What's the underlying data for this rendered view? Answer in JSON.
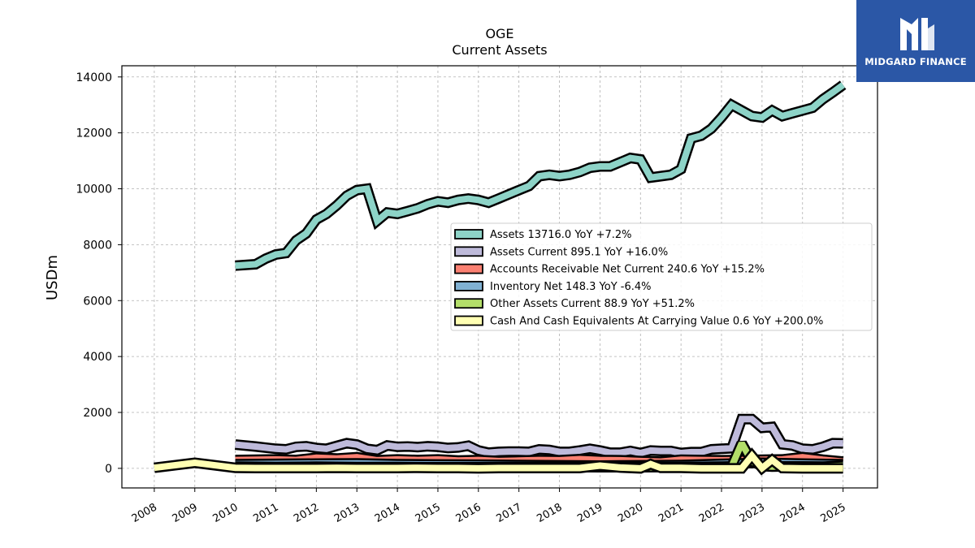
{
  "brand": {
    "name": "MIDGARD FINANCE",
    "bg_color": "#2b57a6"
  },
  "chart_data": {
    "type": "area",
    "title": "OGE",
    "subtitle": "Current  Assets",
    "xlabel": "",
    "ylabel": "USDm",
    "ylim": [
      -700,
      14400
    ],
    "xlim": [
      2007.2,
      2025.85
    ],
    "yticks": [
      0,
      2000,
      4000,
      6000,
      8000,
      10000,
      12000,
      14000
    ],
    "xticks": [
      "2008",
      "2009",
      "2010",
      "2011",
      "2012",
      "2013",
      "2014",
      "2015",
      "2016",
      "2017",
      "2018",
      "2019",
      "2020",
      "2021",
      "2022",
      "2023",
      "2024",
      "2025"
    ],
    "grid": true,
    "legend_position": "center-right",
    "series": [
      {
        "name": "Assets",
        "legend": "Assets  13716.0 YoY +7.2%",
        "color": "#8dd3c7",
        "x": [
          2010.0,
          2010.5,
          2010.75,
          2011.0,
          2011.25,
          2011.5,
          2011.75,
          2012.0,
          2012.25,
          2012.5,
          2012.75,
          2013.0,
          2013.25,
          2013.5,
          2013.75,
          2014.0,
          2014.25,
          2014.5,
          2014.75,
          2015.0,
          2015.25,
          2015.5,
          2015.75,
          2016.0,
          2016.25,
          2016.5,
          2016.75,
          2017.0,
          2017.25,
          2017.5,
          2017.75,
          2018.0,
          2018.25,
          2018.5,
          2018.75,
          2019.0,
          2019.25,
          2019.5,
          2019.75,
          2020.0,
          2020.25,
          2020.5,
          2020.75,
          2021.0,
          2021.25,
          2021.5,
          2021.75,
          2022.0,
          2022.25,
          2022.5,
          2022.75,
          2023.0,
          2023.25,
          2023.5,
          2023.75,
          2024.0,
          2024.25,
          2024.5,
          2024.75,
          2025.0
        ],
        "values": [
          7250,
          7300,
          7500,
          7650,
          7700,
          8150,
          8400,
          8900,
          9100,
          9400,
          9750,
          9950,
          10000,
          8850,
          9150,
          9100,
          9200,
          9300,
          9450,
          9550,
          9500,
          9600,
          9650,
          9600,
          9500,
          9650,
          9800,
          9950,
          10100,
          10450,
          10500,
          10450,
          10500,
          10600,
          10750,
          10800,
          10800,
          10950,
          11100,
          11050,
          10400,
          10450,
          10500,
          10700,
          11800,
          11900,
          12150,
          12550,
          13000,
          12800,
          12600,
          12550,
          12800,
          12600,
          12700,
          12800,
          12900,
          13200,
          13450,
          13716
        ]
      },
      {
        "name": "Assets Current",
        "legend": "Assets Current  895.1 YoY +16.0%",
        "color": "#bebada",
        "x": [
          2010.0,
          2010.5,
          2010.75,
          2011.0,
          2011.25,
          2011.5,
          2011.75,
          2012.0,
          2012.25,
          2012.5,
          2012.75,
          2013.0,
          2013.25,
          2013.5,
          2013.75,
          2014.0,
          2014.25,
          2014.5,
          2014.75,
          2015.0,
          2015.25,
          2015.5,
          2015.75,
          2016.0,
          2016.25,
          2016.5,
          2016.75,
          2017.0,
          2017.25,
          2017.5,
          2017.75,
          2018.0,
          2018.25,
          2018.5,
          2018.75,
          2019.0,
          2019.25,
          2019.5,
          2019.75,
          2020.0,
          2020.25,
          2020.5,
          2020.75,
          2021.0,
          2021.25,
          2021.5,
          2021.75,
          2022.0,
          2022.25,
          2022.5,
          2022.75,
          2023.0,
          2023.25,
          2023.5,
          2023.75,
          2024.0,
          2024.25,
          2024.5,
          2024.75,
          2025.0
        ],
        "values": [
          850,
          780,
          740,
          700,
          680,
          770,
          790,
          730,
          700,
          800,
          900,
          850,
          700,
          650,
          820,
          770,
          780,
          760,
          790,
          770,
          730,
          750,
          810,
          640,
          560,
          590,
          600,
          600,
          590,
          680,
          660,
          590,
          590,
          640,
          700,
          640,
          560,
          560,
          620,
          550,
          640,
          620,
          620,
          550,
          580,
          580,
          680,
          700,
          720,
          1760,
          1760,
          1450,
          1480,
          860,
          820,
          700,
          680,
          770,
          900,
          895
        ]
      },
      {
        "name": "Accounts Receivable Net Current",
        "legend": "Accounts Receivable Net Current  240.6 YoY +15.2%",
        "color": "#fb8072",
        "x": [
          2010.0,
          2010.5,
          2011.0,
          2011.5,
          2012.0,
          2012.5,
          2013.0,
          2013.5,
          2014.0,
          2014.5,
          2015.0,
          2015.5,
          2016.0,
          2016.5,
          2017.0,
          2017.5,
          2018.0,
          2018.5,
          2019.0,
          2019.5,
          2020.0,
          2020.5,
          2021.0,
          2021.5,
          2022.0,
          2022.5,
          2023.0,
          2023.5,
          2024.0,
          2024.5,
          2025.0
        ],
        "values": [
          300,
          310,
          320,
          300,
          380,
          350,
          400,
          290,
          320,
          300,
          320,
          280,
          300,
          260,
          280,
          300,
          290,
          330,
          300,
          290,
          260,
          240,
          310,
          300,
          290,
          300,
          310,
          320,
          400,
          310,
          240.6
        ]
      },
      {
        "name": "Inventory Net",
        "legend": "Inventory Net  148.3 YoY -6.4%",
        "color": "#80b1d3",
        "x": [
          2010.0,
          2011.0,
          2012.0,
          2013.0,
          2014.0,
          2015.0,
          2016.0,
          2017.0,
          2018.0,
          2019.0,
          2020.0,
          2021.0,
          2022.0,
          2023.0,
          2024.0,
          2025.0
        ],
        "values": [
          150,
          160,
          170,
          180,
          150,
          140,
          130,
          120,
          110,
          100,
          110,
          120,
          160,
          200,
          170,
          148.3
        ]
      },
      {
        "name": "Other Assets Current",
        "legend": "Other Assets Current  88.9 YoY +51.2%",
        "color": "#b3de69",
        "x": [
          2010.0,
          2011.0,
          2012.0,
          2013.0,
          2014.0,
          2015.0,
          2016.0,
          2017.0,
          2018.0,
          2019.0,
          2020.0,
          2021.0,
          2022.0,
          2022.25,
          2022.5,
          2022.75,
          2023.0,
          2023.25,
          2023.5,
          2024.0,
          2024.5,
          2025.0
        ],
        "values": [
          60,
          50,
          60,
          50,
          50,
          40,
          40,
          50,
          50,
          40,
          40,
          50,
          60,
          70,
          900,
          250,
          80,
          60,
          70,
          70,
          60,
          88.9
        ]
      },
      {
        "name": "Cash And Cash Equivalents At Carrying Value",
        "legend": "Cash And Cash Equivalents At Carrying Value  0.6 YoY +200.0%",
        "color": "#ffffb3",
        "x": [
          2008.0,
          2009.0,
          2010.0,
          2010.5,
          2011.0,
          2011.5,
          2012.0,
          2012.5,
          2013.0,
          2013.5,
          2014.0,
          2014.5,
          2015.0,
          2015.5,
          2016.0,
          2016.5,
          2017.0,
          2017.5,
          2018.0,
          2018.5,
          2019.0,
          2019.5,
          2020.0,
          2020.25,
          2020.5,
          2021.0,
          2021.5,
          2022.0,
          2022.5,
          2022.75,
          2023.0,
          2023.25,
          2023.5,
          2024.0,
          2024.5,
          2025.0
        ],
        "values": [
          20,
          200,
          20,
          10,
          10,
          10,
          10,
          20,
          10,
          10,
          10,
          20,
          10,
          10,
          0,
          10,
          10,
          10,
          10,
          10,
          100,
          30,
          0,
          150,
          20,
          20,
          0,
          0,
          0,
          450,
          10,
          300,
          10,
          0,
          0,
          0.6
        ]
      }
    ]
  }
}
